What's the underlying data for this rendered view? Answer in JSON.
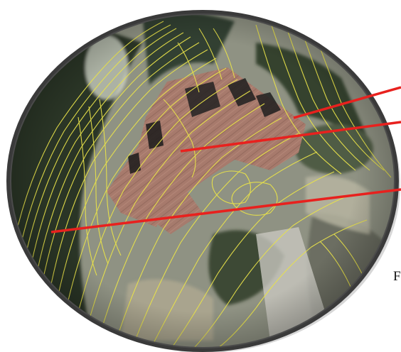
{
  "map": {
    "type": "aerial-photo-with-contour-overlay",
    "frame_shape": "ellipse",
    "contour_color": "#e8e24a",
    "callout_color": "#e8211e",
    "frame_color": "#3a3a3a",
    "roof_color": "#a5776a",
    "vegetation_color": "#2f3a2c",
    "ground_color": "#9a9a8c"
  },
  "callouts": [
    {
      "name": "callout-line-1"
    },
    {
      "name": "callout-line-2"
    },
    {
      "name": "callout-line-3"
    }
  ],
  "edge_label": {
    "text": "F"
  }
}
